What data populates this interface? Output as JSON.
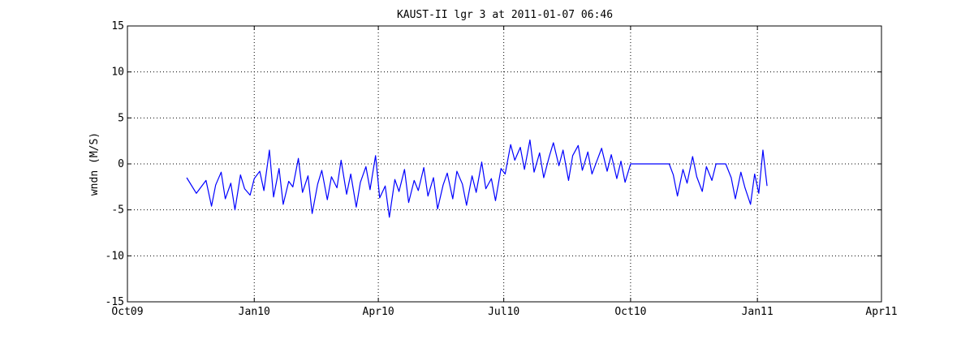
{
  "chart_data": {
    "type": "line",
    "title": "KAUST-II lgr 3 at 2011-01-07 06:46",
    "ylabel": "wndn (M/S)",
    "xlabel": "",
    "x_range": [
      "2009-10-01",
      "2011-04-01"
    ],
    "ylim": [
      -15,
      15
    ],
    "x_ticks": [
      {
        "date": "2009-10-01",
        "label": "Oct09"
      },
      {
        "date": "2010-01-01",
        "label": "Jan10"
      },
      {
        "date": "2010-04-01",
        "label": "Apr10"
      },
      {
        "date": "2010-07-01",
        "label": "Jul10"
      },
      {
        "date": "2010-10-01",
        "label": "Oct10"
      },
      {
        "date": "2011-01-01",
        "label": "Jan11"
      },
      {
        "date": "2011-04-01",
        "label": "Apr11"
      }
    ],
    "y_ticks": [
      {
        "value": 15,
        "label": "15"
      },
      {
        "value": 10,
        "label": "10"
      },
      {
        "value": 5,
        "label": "5"
      },
      {
        "value": 0,
        "label": "0"
      },
      {
        "value": -5,
        "label": "-5"
      },
      {
        "value": -10,
        "label": "-10"
      },
      {
        "value": -15,
        "label": "-15"
      }
    ],
    "grid": true,
    "line_color": "#0000ff",
    "series": [
      {
        "x": [
          "2009-11-13",
          "2009-11-20",
          "2009-11-27",
          "2009-12-01",
          "2009-12-04",
          "2009-12-08",
          "2009-12-11",
          "2009-12-15",
          "2009-12-18",
          "2009-12-22",
          "2009-12-25",
          "2009-12-29",
          "2010-01-01",
          "2010-01-05",
          "2010-01-08",
          "2010-01-12",
          "2010-01-15",
          "2010-01-19",
          "2010-01-22",
          "2010-01-26",
          "2010-01-29",
          "2010-02-02",
          "2010-02-05",
          "2010-02-09",
          "2010-02-12",
          "2010-02-16",
          "2010-02-19",
          "2010-02-23",
          "2010-02-26",
          "2010-03-02",
          "2010-03-05",
          "2010-03-09",
          "2010-03-12",
          "2010-03-16",
          "2010-03-19",
          "2010-03-23",
          "2010-03-26",
          "2010-03-30",
          "2010-04-02",
          "2010-04-06",
          "2010-04-09",
          "2010-04-13",
          "2010-04-16",
          "2010-04-20",
          "2010-04-23",
          "2010-04-27",
          "2010-04-30",
          "2010-05-04",
          "2010-05-07",
          "2010-05-11",
          "2010-05-14",
          "2010-05-18",
          "2010-05-21",
          "2010-05-25",
          "2010-05-28",
          "2010-06-01",
          "2010-06-04",
          "2010-06-08",
          "2010-06-11",
          "2010-06-15",
          "2010-06-18",
          "2010-06-22",
          "2010-06-25",
          "2010-06-29",
          "2010-07-02",
          "2010-07-06",
          "2010-07-09",
          "2010-07-13",
          "2010-07-16",
          "2010-07-20",
          "2010-07-23",
          "2010-07-27",
          "2010-07-30",
          "2010-08-03",
          "2010-08-06",
          "2010-08-10",
          "2010-08-13",
          "2010-08-17",
          "2010-08-20",
          "2010-08-24",
          "2010-08-27",
          "2010-08-31",
          "2010-09-03",
          "2010-09-07",
          "2010-09-10",
          "2010-09-14",
          "2010-09-17",
          "2010-09-21",
          "2010-09-24",
          "2010-09-27",
          "2010-10-01",
          "2010-10-10",
          "2010-10-20",
          "2010-10-29",
          "2010-11-01",
          "2010-11-04",
          "2010-11-08",
          "2010-11-11",
          "2010-11-15",
          "2010-11-18",
          "2010-11-22",
          "2010-11-25",
          "2010-11-29",
          "2010-12-02",
          "2010-12-06",
          "2010-12-09",
          "2010-12-13",
          "2010-12-16",
          "2010-12-20",
          "2010-12-23",
          "2010-12-27",
          "2010-12-30",
          "2011-01-02",
          "2011-01-05",
          "2011-01-08"
        ],
        "y": [
          -1.5,
          -3.2,
          -1.8,
          -4.6,
          -2.3,
          -0.9,
          -3.8,
          -2.1,
          -5.0,
          -1.2,
          -2.7,
          -3.4,
          -1.6,
          -0.8,
          -2.9,
          1.5,
          -3.6,
          -0.5,
          -4.4,
          -1.9,
          -2.5,
          0.6,
          -3.1,
          -1.3,
          -5.4,
          -2.2,
          -0.7,
          -3.9,
          -1.4,
          -2.6,
          0.4,
          -3.3,
          -1.1,
          -4.7,
          -2.0,
          -0.3,
          -2.8,
          0.9,
          -3.7,
          -2.4,
          -5.8,
          -1.7,
          -3.0,
          -0.6,
          -4.2,
          -1.8,
          -2.9,
          -0.4,
          -3.5,
          -1.5,
          -4.9,
          -2.3,
          -1.0,
          -3.8,
          -0.8,
          -2.2,
          -4.5,
          -1.3,
          -3.1,
          0.2,
          -2.7,
          -1.6,
          -4.0,
          -0.5,
          -1.1,
          2.1,
          0.4,
          1.8,
          -0.6,
          2.6,
          -0.9,
          1.2,
          -1.5,
          0.8,
          2.3,
          -0.2,
          1.5,
          -1.8,
          0.9,
          2.0,
          -0.7,
          1.3,
          -1.1,
          0.5,
          1.7,
          -0.8,
          1.0,
          -1.6,
          0.3,
          -2.0,
          0,
          0,
          0,
          0,
          -1.2,
          -3.5,
          -0.6,
          -2.1,
          0.8,
          -1.4,
          -3.0,
          -0.3,
          -1.8,
          0,
          0,
          0,
          -1.5,
          -3.8,
          -0.9,
          -2.6,
          -4.4,
          -1.1,
          -3.2,
          1.5,
          -2.4
        ]
      }
    ]
  }
}
